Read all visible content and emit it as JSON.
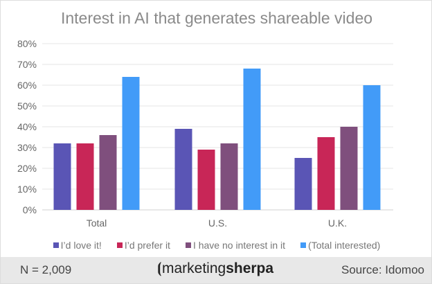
{
  "chart_data": {
    "type": "bar",
    "title": "Interest in AI that generates shareable video",
    "categories": [
      "Total",
      "U.S.",
      "U.K."
    ],
    "series": [
      {
        "name": "I’d love it!",
        "color": "#5a55b5",
        "values": [
          32,
          39,
          25
        ]
      },
      {
        "name": "I’d prefer it",
        "color": "#c82657",
        "values": [
          32,
          29,
          35
        ]
      },
      {
        "name": "I have no interest in it",
        "color": "#7f4f7d",
        "values": [
          36,
          32,
          40
        ]
      },
      {
        "name": "(Total interested)",
        "color": "#429bf8",
        "values": [
          64,
          68,
          60
        ]
      }
    ],
    "ylim": [
      0,
      80
    ],
    "yticks": [
      "0%",
      "10%",
      "20%",
      "30%",
      "40%",
      "50%",
      "60%",
      "70%",
      "80%"
    ],
    "grid": true,
    "legend": "bottom",
    "xlabel": "",
    "ylabel": ""
  },
  "footer": {
    "n": "N = 2,009",
    "source": "Source: Idomoo",
    "logo_a": "marketing",
    "logo_b": "sherpa"
  }
}
